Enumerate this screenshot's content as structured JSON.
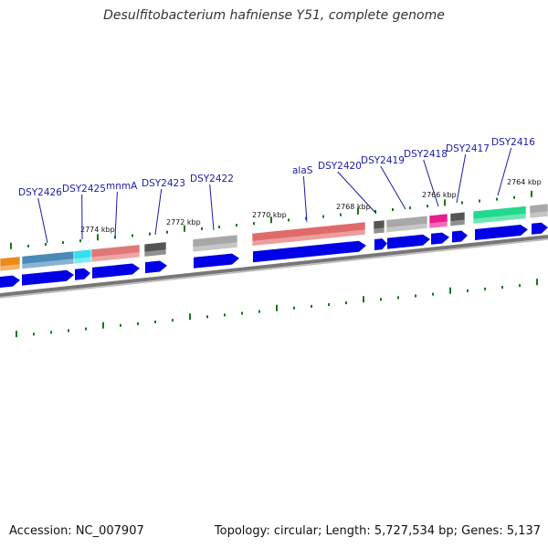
{
  "title": "Desulfitobacterium hafniense Y51, complete genome",
  "footer": {
    "accession": "Accession: NC_007907",
    "summary": "Topology: circular; Length: 5,727,534 bp; Genes: 5,137"
  },
  "colors": {
    "cds_arrow": "#0000e6",
    "tick": "#127a12",
    "backbone": "#777777",
    "label": "#1a1aa8",
    "leader_line": "#1a1aa8"
  },
  "kbp_labels": [
    "2774 kbp",
    "2772 kbp",
    "2770 kbp",
    "2768 kbp",
    "2766 kbp",
    "2764 kbp"
  ],
  "gene_labels": [
    "DSY2426",
    "DSY2425",
    "mnmA",
    "DSY2423",
    "DSY2422",
    "alaS",
    "DSY2420",
    "DSY2419",
    "DSY2418",
    "DSY2417",
    "DSY2416"
  ],
  "feature_colors": [
    {
      "name": "orange-feature",
      "color": "#ee8a1a"
    },
    {
      "name": "DSY2426",
      "color": "#4a8ab8"
    },
    {
      "name": "DSY2425",
      "color": "#33e0f0"
    },
    {
      "name": "mnmA",
      "color": "#e07878"
    },
    {
      "name": "DSY2423",
      "color": "#555555"
    },
    {
      "name": "DSY2422",
      "color": "#a8a8a8"
    },
    {
      "name": "alaS",
      "color": "#e06a6a"
    },
    {
      "name": "DSY2420",
      "color": "#555555"
    },
    {
      "name": "DSY2419",
      "color": "#a8a8a8"
    },
    {
      "name": "DSY2418",
      "color": "#e81c8c"
    },
    {
      "name": "DSY2417",
      "color": "#555555"
    },
    {
      "name": "DSY2416",
      "color": "#22d98c"
    },
    {
      "name": "right-edge-feature",
      "color": "#a8a8a8"
    }
  ]
}
